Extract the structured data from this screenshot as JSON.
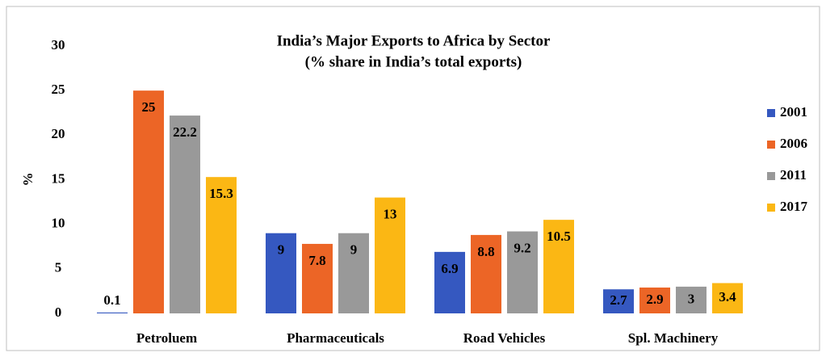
{
  "chart_data": {
    "type": "bar",
    "title": "India’s Major Exports to Africa by Sector",
    "subtitle": "(% share in India’s total exports)",
    "y_label": "%",
    "categories": [
      "Petroluem",
      "Pharmaceuticals",
      "Road Vehicles",
      "Spl. Machinery"
    ],
    "series": [
      {
        "name": "2001",
        "color": "#3558c0",
        "values": [
          0.1,
          9,
          6.9,
          2.7
        ]
      },
      {
        "name": "2006",
        "color": "#ec6526",
        "values": [
          25,
          7.8,
          8.8,
          2.9
        ]
      },
      {
        "name": "2011",
        "color": "#999999",
        "values": [
          22.2,
          9,
          9.2,
          3
        ]
      },
      {
        "name": "2017",
        "color": "#fbb714",
        "values": [
          15.3,
          13,
          10.5,
          3.4
        ]
      }
    ],
    "ylim": [
      0,
      30
    ],
    "yticks": [
      0,
      5,
      10,
      15,
      20,
      25,
      30
    ],
    "grid": false,
    "legend": "right"
  }
}
